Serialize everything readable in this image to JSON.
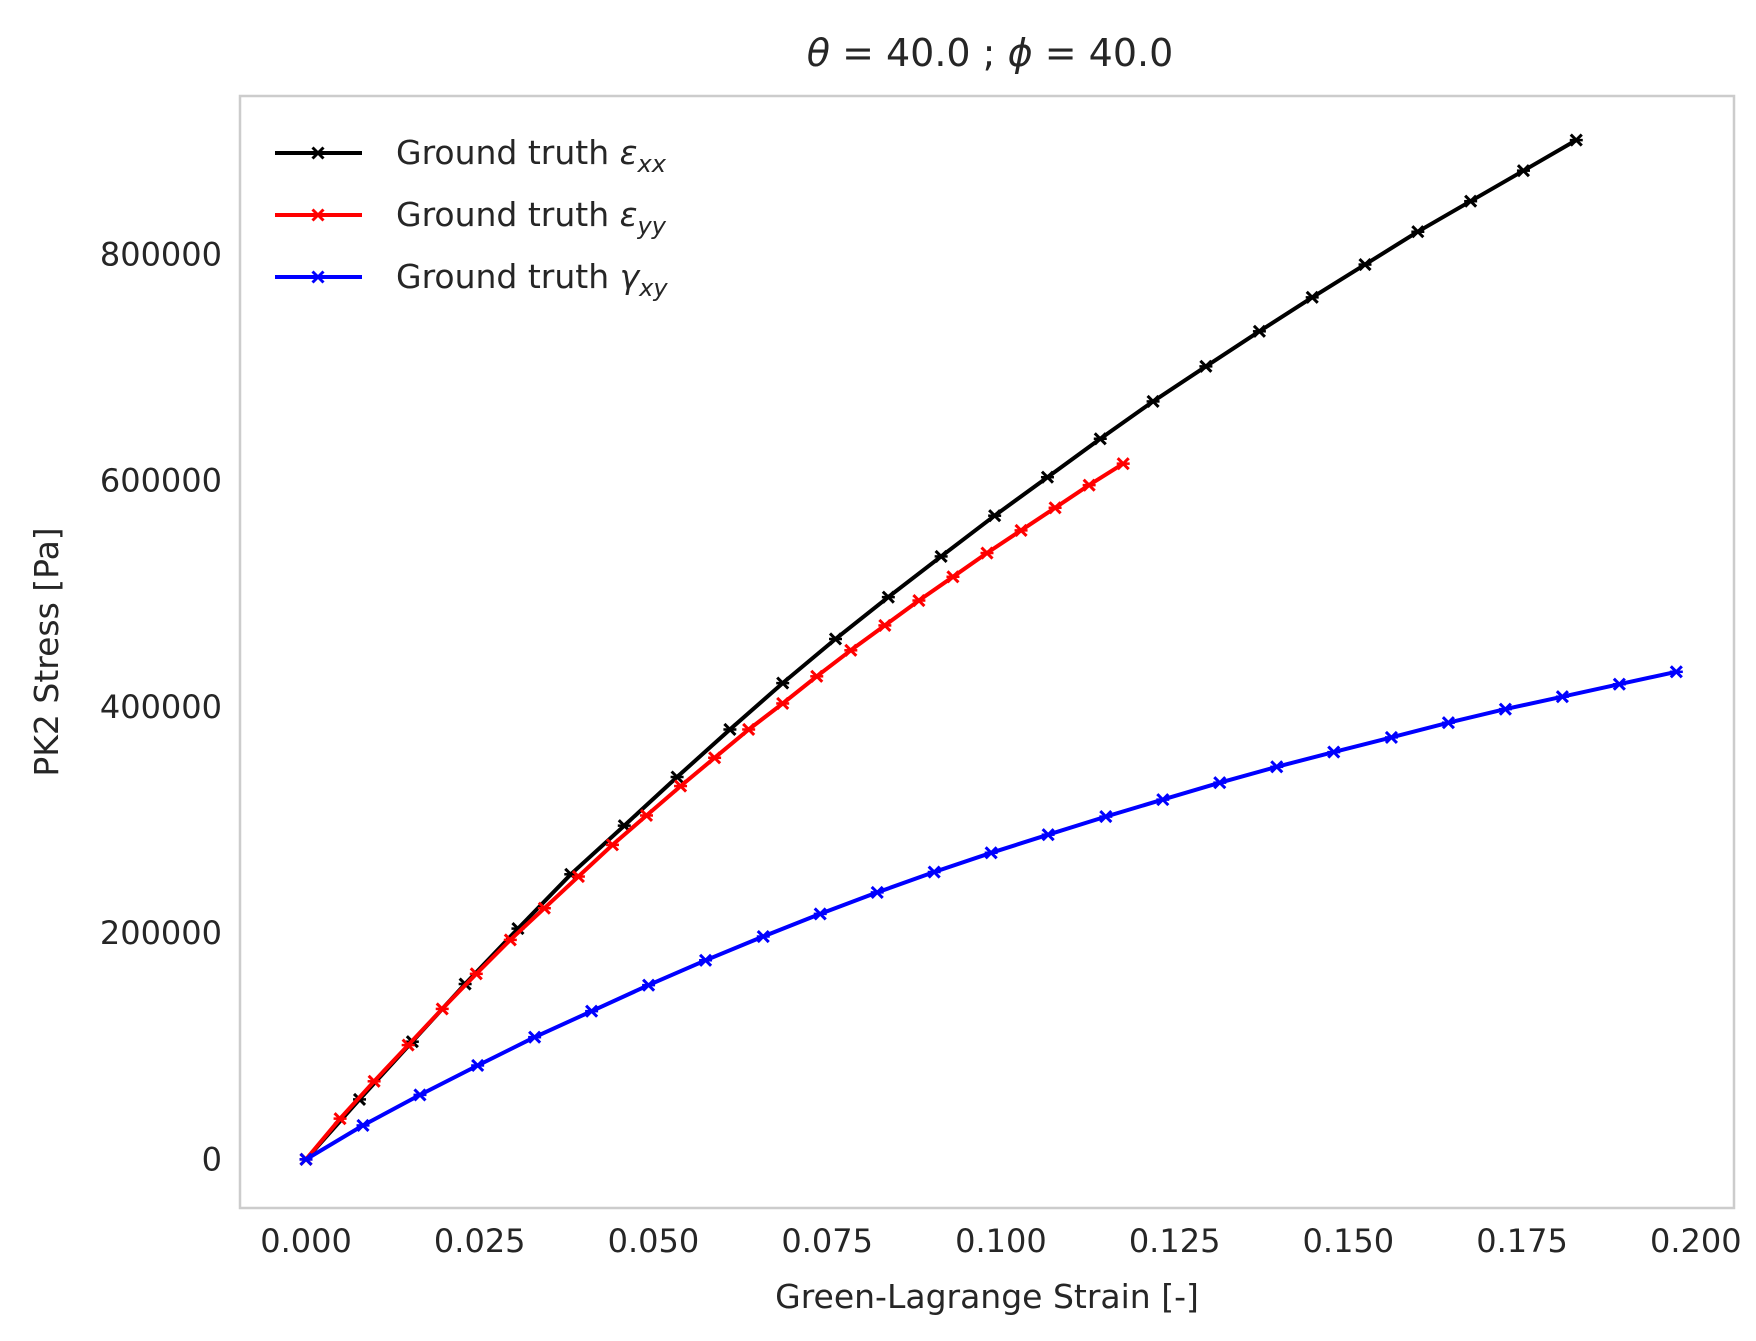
{
  "chart_data": {
    "type": "line",
    "title": {
      "theta_symbol": "θ",
      "theta_text": " = 40.0 ; ",
      "phi_symbol": "ϕ",
      "phi_text": " = 40.0"
    },
    "xlabel": "Green-Lagrange Strain [-]",
    "ylabel": "PK2 Stress [Pa]",
    "xlim": [
      -0.0095,
      0.2055
    ],
    "ylim": [
      -43000,
      940000
    ],
    "xticks": [
      0.0,
      0.025,
      0.05,
      0.075,
      0.1,
      0.125,
      0.15,
      0.175,
      0.2
    ],
    "xtick_labels": [
      "0.000",
      "0.025",
      "0.050",
      "0.075",
      "0.100",
      "0.125",
      "0.150",
      "0.175",
      "0.200"
    ],
    "yticks": [
      0,
      200000,
      400000,
      600000,
      800000
    ],
    "ytick_labels": [
      "0",
      "200000",
      "400000",
      "600000",
      "800000"
    ],
    "grid": false,
    "legend_position": "top-left",
    "series": [
      {
        "name_prefix": "Ground truth ",
        "symbol": "ε",
        "subscript": "xx",
        "color": "#000000",
        "x": [
          0.0,
          0.0077,
          0.0153,
          0.0229,
          0.0305,
          0.0381,
          0.0458,
          0.0534,
          0.061,
          0.0686,
          0.0762,
          0.0838,
          0.0914,
          0.0991,
          0.1067,
          0.1143,
          0.1219,
          0.1295,
          0.1372,
          0.1448,
          0.1524,
          0.16,
          0.1676,
          0.1752,
          0.1828
        ],
        "y": [
          0,
          53000,
          104000,
          155000,
          204000,
          252000,
          295000,
          338000,
          380000,
          421000,
          460000,
          497000,
          533000,
          569000,
          603000,
          637000,
          670000,
          701000,
          732000,
          762000,
          791000,
          820000,
          847000,
          874000,
          901000
        ]
      },
      {
        "name_prefix": "Ground truth ",
        "symbol": "ε",
        "subscript": "yy",
        "color": "#ff0000",
        "x": [
          0.0,
          0.0049,
          0.0098,
          0.0147,
          0.0196,
          0.0245,
          0.0294,
          0.0343,
          0.0392,
          0.0441,
          0.049,
          0.0539,
          0.0588,
          0.0637,
          0.0686,
          0.0735,
          0.0784,
          0.0833,
          0.0882,
          0.0931,
          0.098,
          0.1029,
          0.1078,
          0.1127,
          0.1176
        ],
        "y": [
          0,
          36000,
          69000,
          101000,
          133000,
          164000,
          194000,
          222000,
          250000,
          278000,
          304000,
          330000,
          355000,
          380000,
          403000,
          427000,
          450000,
          472000,
          494000,
          515000,
          536000,
          556000,
          576000,
          596000,
          615000
        ]
      },
      {
        "name_prefix": "Ground truth ",
        "symbol": "γ",
        "subscript": "xy",
        "color": "#0000ff",
        "x": [
          0.0,
          0.0082,
          0.0164,
          0.0247,
          0.0329,
          0.0411,
          0.0493,
          0.0575,
          0.0658,
          0.074,
          0.0822,
          0.0904,
          0.0986,
          0.1068,
          0.1151,
          0.1233,
          0.1315,
          0.1397,
          0.1479,
          0.1562,
          0.1644,
          0.1726,
          0.1808,
          0.189,
          0.1972
        ],
        "y": [
          0,
          30000,
          57000,
          83000,
          108000,
          131000,
          154000,
          176000,
          197000,
          217000,
          236000,
          254000,
          271000,
          287000,
          303000,
          318000,
          333000,
          347000,
          360000,
          373000,
          386000,
          398000,
          409000,
          420000,
          431000
        ]
      }
    ]
  }
}
